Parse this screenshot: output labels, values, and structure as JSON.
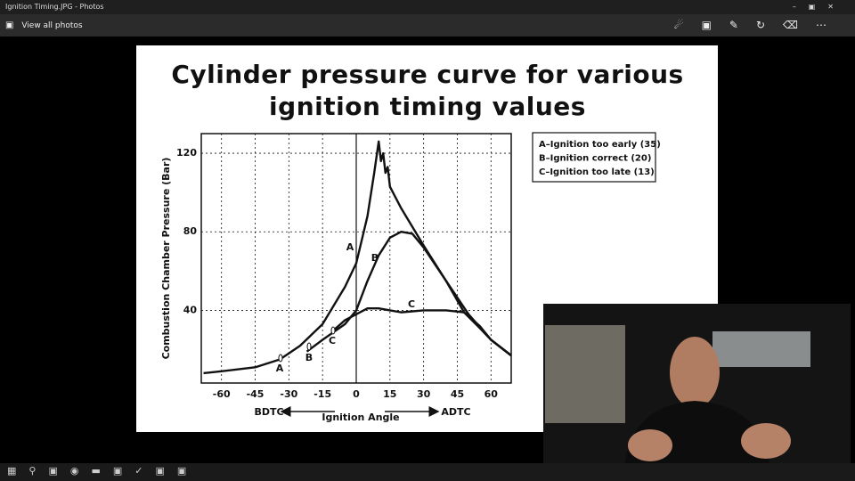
{
  "window": {
    "title": "Ignition Timing.JPG - Photos",
    "nav": "View all photos"
  },
  "chart_data": {
    "type": "line",
    "title": "Cylinder pressure curve for various ignition timing values",
    "y_label": "Combustion Chamber Pressure (Bar)",
    "x_label": "Ignition Angle",
    "x_left_label": "BDTC",
    "x_right_label": "ADTC",
    "xlim": [
      -69,
      69
    ],
    "ylim": [
      3,
      130
    ],
    "xticks": [
      -60,
      -45,
      -30,
      -15,
      0,
      15,
      30,
      45,
      60
    ],
    "yticks": [
      40,
      80,
      120
    ],
    "grid": true,
    "legend": "top-right",
    "series": [
      {
        "name": "A–Ignition too early (35)",
        "label": "A",
        "color": "#111111",
        "x": [
          -68,
          -60,
          -45,
          -34,
          -25,
          -15,
          -5,
          0,
          5,
          8,
          10,
          11,
          12,
          13,
          14,
          15,
          20,
          30,
          40,
          50,
          60,
          69
        ],
        "values": [
          8,
          9,
          11,
          15,
          22,
          33,
          52,
          64,
          88,
          110,
          126,
          116,
          120,
          110,
          113,
          103,
          92,
          73,
          55,
          38,
          25,
          17
        ]
      },
      {
        "name": "B–Ignition correct (20)",
        "label": "B",
        "color": "#111111",
        "x": [
          -22,
          -15,
          -10,
          -5,
          0,
          5,
          10,
          15,
          20,
          25,
          30,
          40,
          48,
          55,
          60,
          69
        ],
        "values": [
          19,
          25,
          29,
          33,
          40,
          55,
          68,
          77,
          80,
          79,
          72,
          55,
          39,
          31,
          25,
          17
        ]
      },
      {
        "name": "C–Ignition too late (13)",
        "label": "C",
        "color": "#111111",
        "x": [
          -11,
          -5,
          0,
          5,
          10,
          15,
          20,
          30,
          40,
          48,
          55,
          60,
          69
        ],
        "values": [
          29,
          35,
          38,
          41,
          41,
          40,
          39,
          40,
          40,
          39,
          32,
          25,
          17
        ]
      }
    ]
  }
}
